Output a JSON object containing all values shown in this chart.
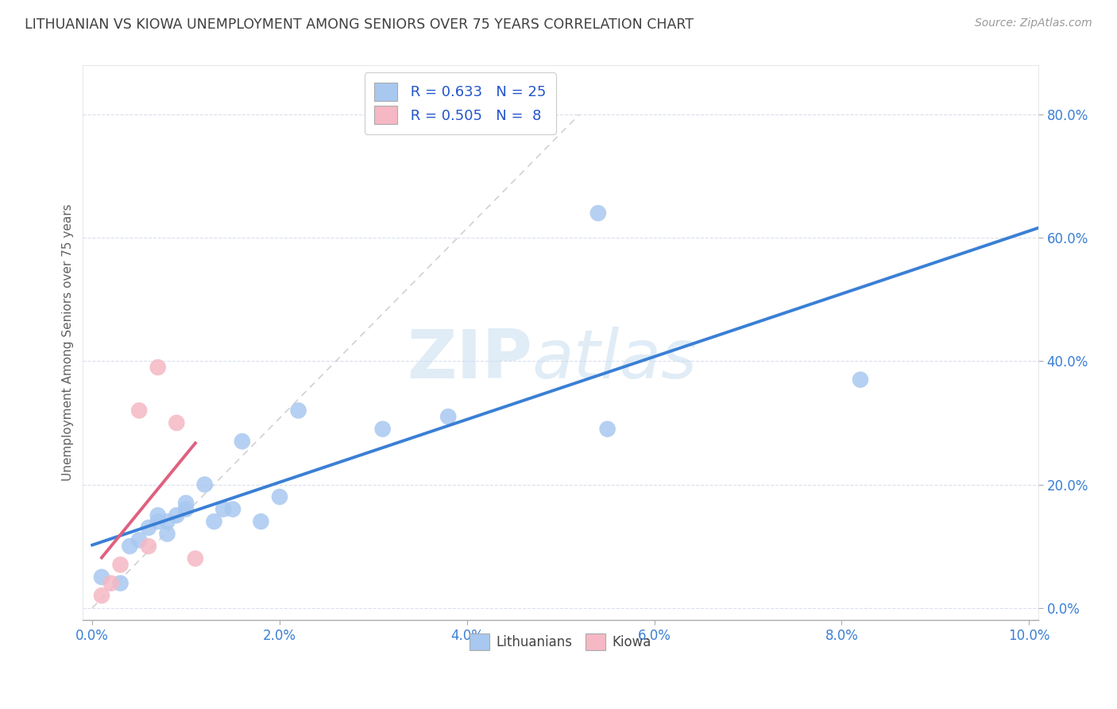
{
  "title": "LITHUANIAN VS KIOWA UNEMPLOYMENT AMONG SENIORS OVER 75 YEARS CORRELATION CHART",
  "source": "Source: ZipAtlas.com",
  "ylabel": "Unemployment Among Seniors over 75 years",
  "x_range": [
    -0.001,
    0.101
  ],
  "y_range": [
    -0.02,
    0.88
  ],
  "x_ticks": [
    0.0,
    0.02,
    0.04,
    0.06,
    0.08,
    0.1
  ],
  "y_ticks": [
    0.0,
    0.2,
    0.4,
    0.6,
    0.8
  ],
  "y_tick_labels": [
    "0.0%",
    "20.0%",
    "40.0%",
    "60.0%",
    "80.0%"
  ],
  "x_tick_labels": [
    "0.0%",
    "2.0%",
    "4.0%",
    "6.0%",
    "8.0%",
    "10.0%"
  ],
  "legend_R1": "R = 0.633",
  "legend_N1": "N = 25",
  "legend_R2": "R = 0.505",
  "legend_N2": "N =  8",
  "lithuanians_color": "#a8c8f0",
  "kiowa_color": "#f5b8c4",
  "lithuanians_line_color": "#3a7fd5",
  "kiowa_line_color": "#e06080",
  "legend_label1": "Lithuanians",
  "legend_label2": "Kiowa",
  "background_color": "#ffffff",
  "title_color": "#404040",
  "axis_label_color": "#606060",
  "tick_color": "#3a7fd5",
  "watermark_zip": "ZIP",
  "watermark_atlas": "atlas",
  "lithuanians_x": [
    0.001,
    0.003,
    0.004,
    0.005,
    0.006,
    0.007,
    0.007,
    0.008,
    0.008,
    0.009,
    0.01,
    0.01,
    0.012,
    0.013,
    0.014,
    0.015,
    0.016,
    0.018,
    0.02,
    0.022,
    0.031,
    0.038,
    0.054,
    0.055,
    0.082
  ],
  "lithuanians_y": [
    0.05,
    0.04,
    0.1,
    0.11,
    0.13,
    0.15,
    0.14,
    0.12,
    0.14,
    0.15,
    0.16,
    0.17,
    0.2,
    0.14,
    0.16,
    0.16,
    0.27,
    0.14,
    0.18,
    0.32,
    0.29,
    0.31,
    0.64,
    0.29,
    0.37
  ],
  "kiowa_x": [
    0.001,
    0.002,
    0.003,
    0.005,
    0.006,
    0.007,
    0.009,
    0.011
  ],
  "kiowa_y": [
    0.02,
    0.04,
    0.07,
    0.32,
    0.1,
    0.39,
    0.3,
    0.08
  ],
  "lith_trendline_x": [
    0.0,
    0.101
  ],
  "kiowa_trendline_xmin": 0.001,
  "kiowa_trendline_xmax": 0.011
}
